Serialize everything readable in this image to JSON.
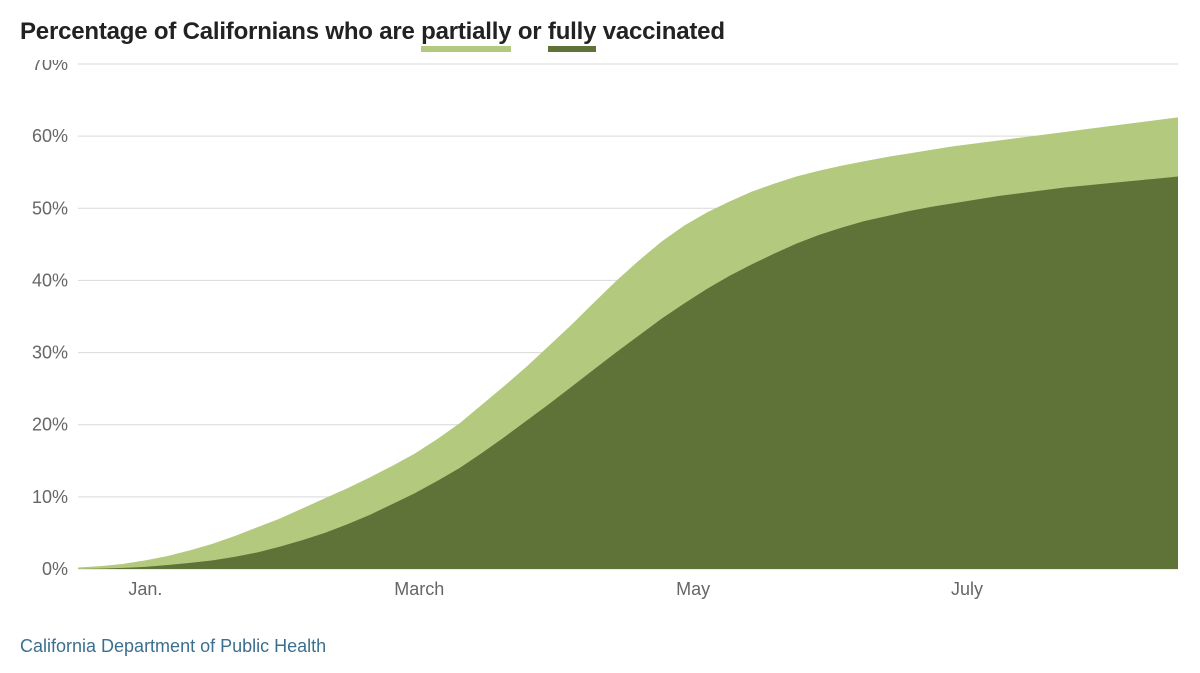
{
  "title_prefix": "Percentage of Californians who are ",
  "title_partial": "partially",
  "title_mid": " or ",
  "title_fully": "fully",
  "title_suffix": " vaccinated",
  "source": "California Department of Public Health",
  "chart": {
    "type": "area",
    "background_color": "#ffffff",
    "grid_color": "#d9d9d9",
    "text_color": "#666666",
    "title_color": "#222222",
    "source_color": "#3b6f8f",
    "partial_color": "#b2c97e",
    "fully_color": "#5f7237",
    "underline_partial": "#b2c97e",
    "underline_fully": "#5f7237",
    "ylim": [
      0,
      70
    ],
    "ytick_step": 10,
    "ytick_suffix": "%",
    "x_start": 0,
    "x_end": 245,
    "x_ticks": [
      {
        "pos": 15,
        "label": "Jan."
      },
      {
        "pos": 76,
        "label": "March"
      },
      {
        "pos": 137,
        "label": "May"
      },
      {
        "pos": 198,
        "label": "July"
      }
    ],
    "series": {
      "partially": [
        {
          "x": 0,
          "y": 0.2
        },
        {
          "x": 5,
          "y": 0.4
        },
        {
          "x": 10,
          "y": 0.7
        },
        {
          "x": 15,
          "y": 1.2
        },
        {
          "x": 20,
          "y": 1.8
        },
        {
          "x": 25,
          "y": 2.6
        },
        {
          "x": 30,
          "y": 3.5
        },
        {
          "x": 35,
          "y": 4.6
        },
        {
          "x": 40,
          "y": 5.8
        },
        {
          "x": 45,
          "y": 7.0
        },
        {
          "x": 50,
          "y": 8.4
        },
        {
          "x": 55,
          "y": 9.8
        },
        {
          "x": 60,
          "y": 11.2
        },
        {
          "x": 65,
          "y": 12.7
        },
        {
          "x": 70,
          "y": 14.3
        },
        {
          "x": 75,
          "y": 16.0
        },
        {
          "x": 80,
          "y": 18.0
        },
        {
          "x": 85,
          "y": 20.2
        },
        {
          "x": 90,
          "y": 22.8
        },
        {
          "x": 95,
          "y": 25.4
        },
        {
          "x": 100,
          "y": 28.1
        },
        {
          "x": 105,
          "y": 31.0
        },
        {
          "x": 110,
          "y": 33.9
        },
        {
          "x": 115,
          "y": 37.0
        },
        {
          "x": 120,
          "y": 40.0
        },
        {
          "x": 125,
          "y": 42.8
        },
        {
          "x": 130,
          "y": 45.4
        },
        {
          "x": 135,
          "y": 47.6
        },
        {
          "x": 140,
          "y": 49.4
        },
        {
          "x": 145,
          "y": 50.9
        },
        {
          "x": 150,
          "y": 52.3
        },
        {
          "x": 155,
          "y": 53.4
        },
        {
          "x": 160,
          "y": 54.4
        },
        {
          "x": 165,
          "y": 55.2
        },
        {
          "x": 170,
          "y": 55.9
        },
        {
          "x": 175,
          "y": 56.5
        },
        {
          "x": 180,
          "y": 57.1
        },
        {
          "x": 185,
          "y": 57.6
        },
        {
          "x": 190,
          "y": 58.1
        },
        {
          "x": 195,
          "y": 58.6
        },
        {
          "x": 200,
          "y": 59.0
        },
        {
          "x": 205,
          "y": 59.4
        },
        {
          "x": 210,
          "y": 59.8
        },
        {
          "x": 215,
          "y": 60.2
        },
        {
          "x": 220,
          "y": 60.6
        },
        {
          "x": 225,
          "y": 61.0
        },
        {
          "x": 230,
          "y": 61.4
        },
        {
          "x": 235,
          "y": 61.8
        },
        {
          "x": 240,
          "y": 62.2
        },
        {
          "x": 245,
          "y": 62.6
        }
      ],
      "fully": [
        {
          "x": 0,
          "y": 0.0
        },
        {
          "x": 5,
          "y": 0.05
        },
        {
          "x": 10,
          "y": 0.15
        },
        {
          "x": 15,
          "y": 0.3
        },
        {
          "x": 20,
          "y": 0.55
        },
        {
          "x": 25,
          "y": 0.85
        },
        {
          "x": 30,
          "y": 1.2
        },
        {
          "x": 35,
          "y": 1.7
        },
        {
          "x": 40,
          "y": 2.3
        },
        {
          "x": 45,
          "y": 3.1
        },
        {
          "x": 50,
          "y": 4.0
        },
        {
          "x": 55,
          "y": 5.0
        },
        {
          "x": 60,
          "y": 6.2
        },
        {
          "x": 65,
          "y": 7.5
        },
        {
          "x": 70,
          "y": 9.0
        },
        {
          "x": 75,
          "y": 10.5
        },
        {
          "x": 80,
          "y": 12.2
        },
        {
          "x": 85,
          "y": 14.0
        },
        {
          "x": 90,
          "y": 16.1
        },
        {
          "x": 95,
          "y": 18.3
        },
        {
          "x": 100,
          "y": 20.6
        },
        {
          "x": 105,
          "y": 22.9
        },
        {
          "x": 110,
          "y": 25.3
        },
        {
          "x": 115,
          "y": 27.7
        },
        {
          "x": 120,
          "y": 30.1
        },
        {
          "x": 125,
          "y": 32.4
        },
        {
          "x": 130,
          "y": 34.7
        },
        {
          "x": 135,
          "y": 36.8
        },
        {
          "x": 140,
          "y": 38.8
        },
        {
          "x": 145,
          "y": 40.6
        },
        {
          "x": 150,
          "y": 42.2
        },
        {
          "x": 155,
          "y": 43.7
        },
        {
          "x": 160,
          "y": 45.1
        },
        {
          "x": 165,
          "y": 46.3
        },
        {
          "x": 170,
          "y": 47.3
        },
        {
          "x": 175,
          "y": 48.2
        },
        {
          "x": 180,
          "y": 48.9
        },
        {
          "x": 185,
          "y": 49.6
        },
        {
          "x": 190,
          "y": 50.2
        },
        {
          "x": 195,
          "y": 50.7
        },
        {
          "x": 200,
          "y": 51.2
        },
        {
          "x": 205,
          "y": 51.7
        },
        {
          "x": 210,
          "y": 52.1
        },
        {
          "x": 215,
          "y": 52.5
        },
        {
          "x": 220,
          "y": 52.9
        },
        {
          "x": 225,
          "y": 53.2
        },
        {
          "x": 230,
          "y": 53.5
        },
        {
          "x": 235,
          "y": 53.8
        },
        {
          "x": 240,
          "y": 54.1
        },
        {
          "x": 245,
          "y": 54.4
        }
      ]
    }
  }
}
